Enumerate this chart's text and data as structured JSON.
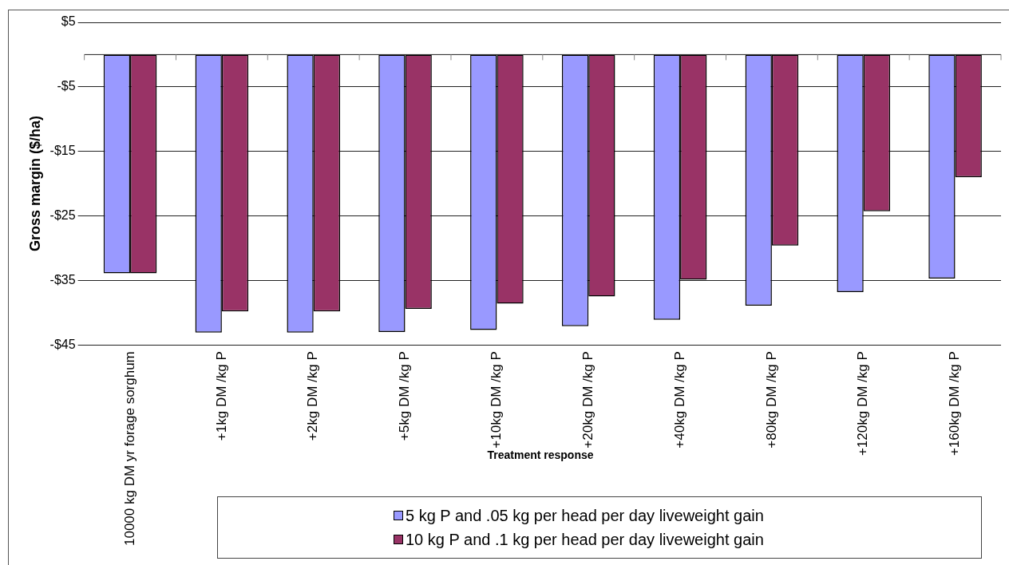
{
  "chart_data": {
    "type": "bar",
    "xlabel": "Treatment response",
    "ylabel": "Gross margin ($/ha)",
    "categories": [
      "10000 kg DM yr forage sorghum",
      "+1kg DM /kg P",
      "+2kg DM /kg P",
      "+5kg DM /kg P",
      "+10kg DM /kg P",
      "+20kg DM /kg P",
      "+40kg DM /kg P",
      "+80kg DM /kg P",
      "+120kg DM /kg P",
      "+160kg DM /kg P"
    ],
    "series": [
      {
        "name": "5 kg P and .05 kg per head per day liveweight gain",
        "color": "#9999ff",
        "values": [
          -33.9,
          -43.1,
          -43.1,
          -43.0,
          -42.7,
          -42.1,
          -41.1,
          -38.9,
          -36.8,
          -34.7
        ]
      },
      {
        "name": "10 kg P and .1 kg per head per day liveweight gain",
        "color": "#993366",
        "values": [
          -33.9,
          -39.8,
          -39.8,
          -39.4,
          -38.6,
          -37.5,
          -34.9,
          -29.6,
          -24.3,
          -19.0
        ]
      }
    ],
    "ylim": [
      -45,
      5
    ],
    "yticks": [
      {
        "value": 5,
        "label": "$5"
      },
      {
        "value": -5,
        "label": "-$5"
      },
      {
        "value": -15,
        "label": "-$15"
      },
      {
        "value": -25,
        "label": "-$25"
      },
      {
        "value": -35,
        "label": "-$35"
      },
      {
        "value": -45,
        "label": "-$45"
      }
    ],
    "grid": "y",
    "legend": "bottom"
  }
}
